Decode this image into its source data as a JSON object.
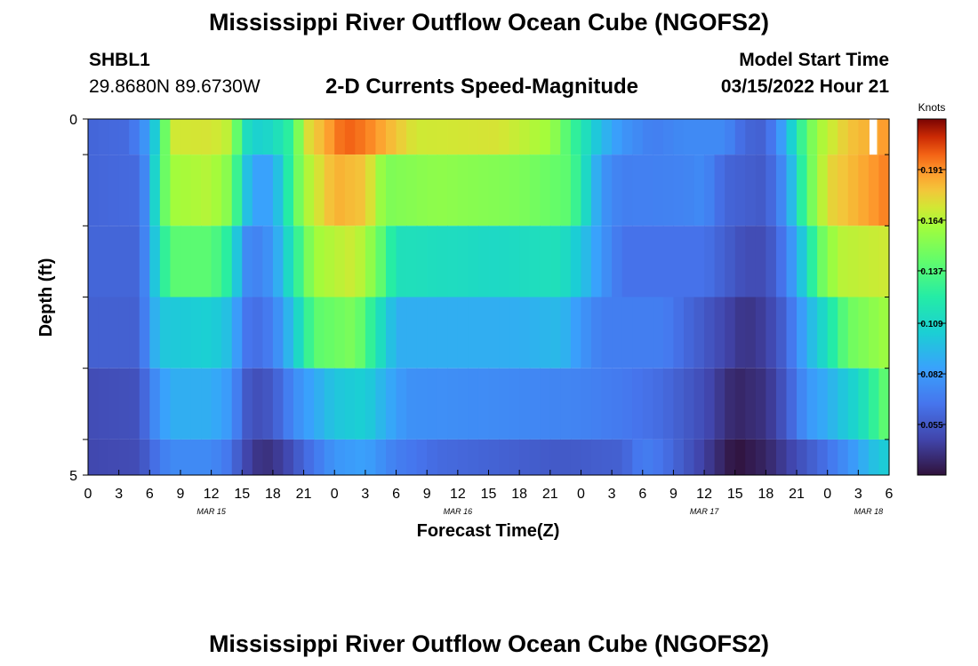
{
  "header": {
    "title": "Mississippi River Outflow Ocean Cube (NGOFS2)",
    "station": "SHBL1",
    "coords": "29.8680N  89.6730W",
    "plot_title": "2-D Currents Speed-Magnitude",
    "model_start_label": "Model Start Time",
    "model_start_value": "03/15/2022 Hour 21"
  },
  "footer": {
    "title": "Mississippi River Outflow Ocean Cube (NGOFS2)"
  },
  "chart_data": {
    "type": "heatmap",
    "xlabel": "Forecast Time(Z)",
    "ylabel": "Depth (ft)",
    "x_tick_labels": [
      "0",
      "3",
      "6",
      "9",
      "12",
      "15",
      "18",
      "21",
      "0",
      "3",
      "6",
      "9",
      "12",
      "15",
      "18",
      "21",
      "0",
      "3",
      "6",
      "9",
      "12",
      "15",
      "18",
      "21",
      "0",
      "3",
      "6"
    ],
    "date_labels": [
      {
        "label": "MAR 15",
        "hour": 12
      },
      {
        "label": "MAR 16",
        "hour": 36
      },
      {
        "label": "MAR 17",
        "hour": 60
      },
      {
        "label": "MAR 18",
        "hour": 76
      }
    ],
    "x_range_hours": [
      0,
      78
    ],
    "y_tick_labels": [
      "0",
      "5"
    ],
    "y_range_ft": [
      0,
      5
    ],
    "depth_rows_ft": [
      0,
      0.5,
      1.5,
      2.5,
      3.5,
      4.5
    ],
    "row_edges_ft": [
      0,
      0.5,
      1.5,
      2.5,
      3.5,
      4.5,
      5
    ],
    "time_step_hours": 1,
    "colorbar": {
      "label": "Knots",
      "min": 0.028,
      "max": 0.218,
      "ticks": [
        "0.191",
        "0.164",
        "0.137",
        "0.109",
        "0.082",
        "0.055"
      ]
    },
    "rows": [
      {
        "depth": 0,
        "knots": [
          [
            0,
            0.06
          ],
          [
            4,
            0.062
          ],
          [
            6,
            0.085
          ],
          [
            7,
            0.12
          ],
          [
            8,
            0.17
          ],
          [
            12,
            0.172
          ],
          [
            14,
            0.165
          ],
          [
            15,
            0.12
          ],
          [
            16,
            0.105
          ],
          [
            18,
            0.11
          ],
          [
            20,
            0.13
          ],
          [
            21,
            0.17
          ],
          [
            25,
            0.2
          ],
          [
            27,
            0.195
          ],
          [
            32,
            0.17
          ],
          [
            40,
            0.172
          ],
          [
            45,
            0.16
          ],
          [
            48,
            0.12
          ],
          [
            50,
            0.095
          ],
          [
            52,
            0.08
          ],
          [
            55,
            0.07
          ],
          [
            58,
            0.075
          ],
          [
            62,
            0.075
          ],
          [
            64,
            0.06
          ],
          [
            66,
            0.058
          ],
          [
            67,
            0.075
          ],
          [
            68,
            0.09
          ],
          [
            69,
            0.12
          ],
          [
            71,
            0.16
          ],
          [
            74,
            0.18
          ],
          [
            78,
            0.19
          ]
        ]
      },
      {
        "depth": 0.5,
        "knots": [
          [
            0,
            0.06
          ],
          [
            5,
            0.062
          ],
          [
            6,
            0.085
          ],
          [
            7,
            0.13
          ],
          [
            8,
            0.16
          ],
          [
            12,
            0.165
          ],
          [
            14,
            0.15
          ],
          [
            15,
            0.11
          ],
          [
            16,
            0.085
          ],
          [
            18,
            0.085
          ],
          [
            19,
            0.11
          ],
          [
            21,
            0.16
          ],
          [
            24,
            0.185
          ],
          [
            27,
            0.18
          ],
          [
            29,
            0.15
          ],
          [
            34,
            0.155
          ],
          [
            42,
            0.15
          ],
          [
            47,
            0.14
          ],
          [
            48,
            0.12
          ],
          [
            50,
            0.08
          ],
          [
            52,
            0.07
          ],
          [
            58,
            0.072
          ],
          [
            60,
            0.075
          ],
          [
            62,
            0.06
          ],
          [
            66,
            0.055
          ],
          [
            68,
            0.08
          ],
          [
            69,
            0.11
          ],
          [
            70,
            0.14
          ],
          [
            72,
            0.175
          ],
          [
            78,
            0.195
          ]
        ]
      },
      {
        "depth": 1.5,
        "knots": [
          [
            0,
            0.06
          ],
          [
            5,
            0.06
          ],
          [
            6,
            0.085
          ],
          [
            7,
            0.115
          ],
          [
            8,
            0.14
          ],
          [
            12,
            0.14
          ],
          [
            14,
            0.12
          ],
          [
            15,
            0.08
          ],
          [
            16,
            0.07
          ],
          [
            18,
            0.08
          ],
          [
            20,
            0.12
          ],
          [
            22,
            0.16
          ],
          [
            26,
            0.17
          ],
          [
            28,
            0.15
          ],
          [
            30,
            0.115
          ],
          [
            40,
            0.11
          ],
          [
            46,
            0.115
          ],
          [
            48,
            0.1
          ],
          [
            50,
            0.08
          ],
          [
            52,
            0.065
          ],
          [
            58,
            0.065
          ],
          [
            60,
            0.065
          ],
          [
            64,
            0.05
          ],
          [
            66,
            0.05
          ],
          [
            68,
            0.07
          ],
          [
            70,
            0.11
          ],
          [
            71,
            0.14
          ],
          [
            73,
            0.165
          ],
          [
            78,
            0.17
          ]
        ]
      },
      {
        "depth": 2.5,
        "knots": [
          [
            0,
            0.058
          ],
          [
            5,
            0.058
          ],
          [
            6,
            0.082
          ],
          [
            7,
            0.1
          ],
          [
            12,
            0.105
          ],
          [
            14,
            0.095
          ],
          [
            15,
            0.07
          ],
          [
            16,
            0.062
          ],
          [
            18,
            0.07
          ],
          [
            20,
            0.1
          ],
          [
            22,
            0.14
          ],
          [
            26,
            0.15
          ],
          [
            28,
            0.12
          ],
          [
            30,
            0.09
          ],
          [
            42,
            0.09
          ],
          [
            46,
            0.095
          ],
          [
            48,
            0.08
          ],
          [
            50,
            0.07
          ],
          [
            56,
            0.07
          ],
          [
            58,
            0.062
          ],
          [
            60,
            0.055
          ],
          [
            64,
            0.04
          ],
          [
            66,
            0.045
          ],
          [
            68,
            0.06
          ],
          [
            70,
            0.09
          ],
          [
            72,
            0.115
          ],
          [
            74,
            0.145
          ],
          [
            78,
            0.16
          ]
        ]
      },
      {
        "depth": 3.5,
        "knots": [
          [
            0,
            0.05
          ],
          [
            5,
            0.052
          ],
          [
            6,
            0.07
          ],
          [
            8,
            0.09
          ],
          [
            12,
            0.09
          ],
          [
            14,
            0.08
          ],
          [
            15,
            0.06
          ],
          [
            16,
            0.05
          ],
          [
            18,
            0.055
          ],
          [
            20,
            0.075
          ],
          [
            24,
            0.1
          ],
          [
            27,
            0.105
          ],
          [
            29,
            0.09
          ],
          [
            31,
            0.078
          ],
          [
            40,
            0.075
          ],
          [
            48,
            0.072
          ],
          [
            52,
            0.068
          ],
          [
            56,
            0.062
          ],
          [
            60,
            0.05
          ],
          [
            63,
            0.035
          ],
          [
            66,
            0.04
          ],
          [
            68,
            0.055
          ],
          [
            70,
            0.08
          ],
          [
            72,
            0.09
          ],
          [
            75,
            0.11
          ],
          [
            76,
            0.12
          ],
          [
            77,
            0.135
          ],
          [
            78,
            0.145
          ]
        ]
      },
      {
        "depth": 4.5,
        "knots": [
          [
            0,
            0.048
          ],
          [
            5,
            0.05
          ],
          [
            6,
            0.06
          ],
          [
            8,
            0.075
          ],
          [
            12,
            0.075
          ],
          [
            14,
            0.065
          ],
          [
            15,
            0.05
          ],
          [
            17,
            0.038
          ],
          [
            19,
            0.045
          ],
          [
            21,
            0.06
          ],
          [
            24,
            0.08
          ],
          [
            27,
            0.085
          ],
          [
            30,
            0.07
          ],
          [
            34,
            0.062
          ],
          [
            46,
            0.055
          ],
          [
            52,
            0.058
          ],
          [
            54,
            0.07
          ],
          [
            56,
            0.065
          ],
          [
            60,
            0.045
          ],
          [
            63,
            0.028
          ],
          [
            66,
            0.035
          ],
          [
            68,
            0.045
          ],
          [
            70,
            0.055
          ],
          [
            72,
            0.065
          ],
          [
            75,
            0.085
          ],
          [
            76,
            0.095
          ],
          [
            78,
            0.105
          ]
        ]
      }
    ],
    "missing_cells": [
      {
        "depth": 0,
        "hour": 76
      }
    ]
  }
}
